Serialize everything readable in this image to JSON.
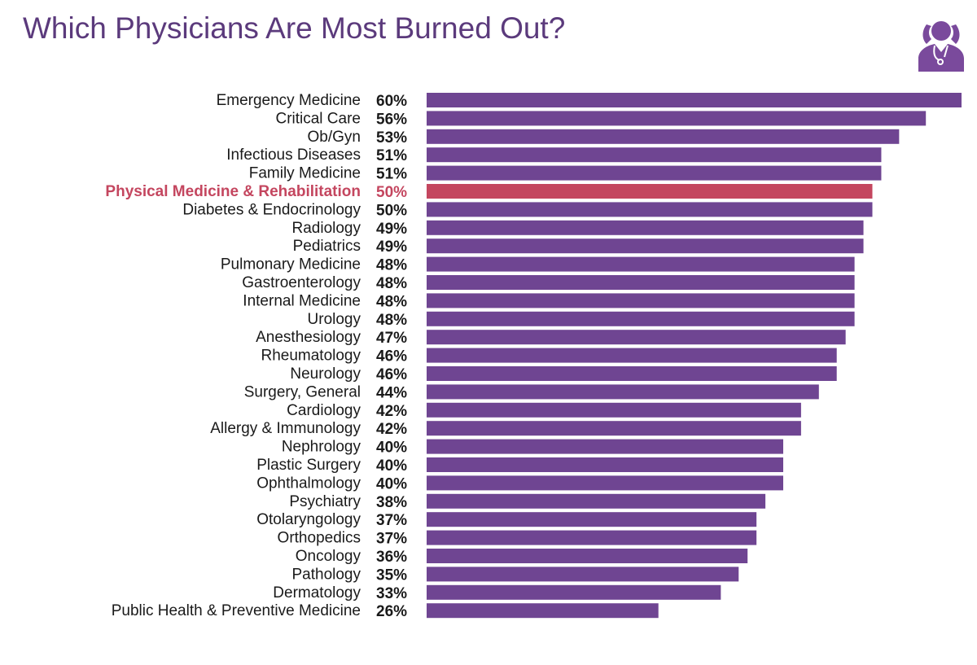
{
  "title": "Which Physicians Are Most Burned Out?",
  "icon": "stressed-physician-icon",
  "colors": {
    "bar": "#6f4592",
    "highlight": "#c4465f",
    "title": "#5b3a7c"
  },
  "chart_data": {
    "type": "bar",
    "orientation": "horizontal",
    "title": "Which Physicians Are Most Burned Out?",
    "value_format": "percent",
    "xlim": [
      0,
      60
    ],
    "highlight": "Physical Medicine & Rehabilitation",
    "categories": [
      "Emergency Medicine",
      "Critical Care",
      "Ob/Gyn",
      "Infectious Diseases",
      "Family Medicine",
      "Physical Medicine & Rehabilitation",
      "Diabetes & Endocrinology",
      "Radiology",
      "Pediatrics",
      "Pulmonary Medicine",
      "Gastroenterology",
      "Internal Medicine",
      "Urology",
      "Anesthesiology",
      "Rheumatology",
      "Neurology",
      "Surgery, General",
      "Cardiology",
      "Allergy & Immunology",
      "Nephrology",
      "Plastic Surgery",
      "Ophthalmology",
      "Psychiatry",
      "Otolaryngology",
      "Orthopedics",
      "Oncology",
      "Pathology",
      "Dermatology",
      "Public Health & Preventive Medicine"
    ],
    "values": [
      60,
      56,
      53,
      51,
      51,
      50,
      50,
      49,
      49,
      48,
      48,
      48,
      48,
      47,
      46,
      46,
      44,
      42,
      42,
      40,
      40,
      40,
      38,
      37,
      37,
      36,
      35,
      33,
      26
    ]
  }
}
